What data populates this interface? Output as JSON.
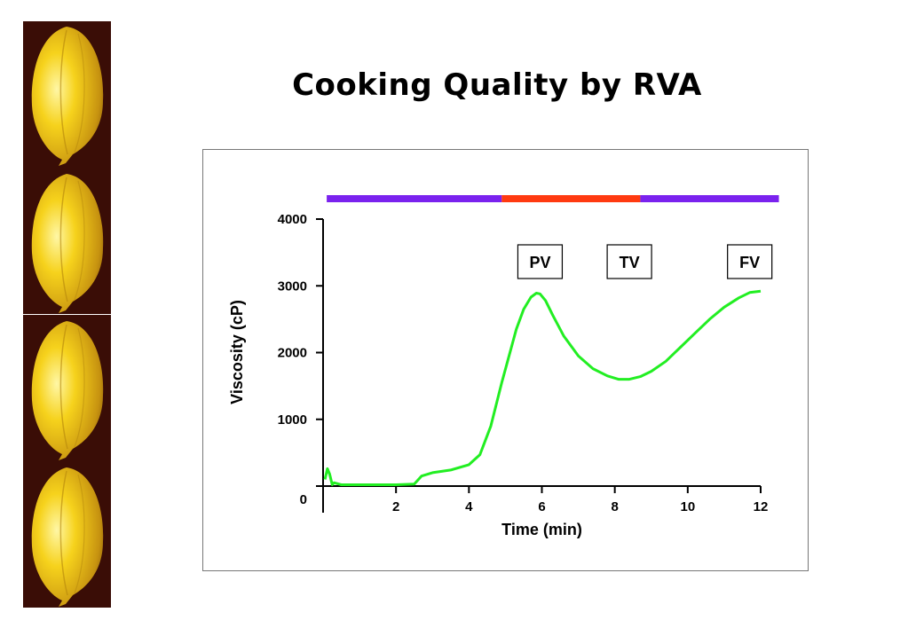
{
  "slide": {
    "title": "Cooking Quality by RVA"
  },
  "colors": {
    "curve": "#22ee22",
    "temp_bar_cool": "#7a22ee",
    "temp_bar_hot": "#ff3a10",
    "grain": "#f2c21a",
    "grain_background": "#3a0d06"
  },
  "decor": {
    "grain_icon": "rice-grain-image",
    "grain_count": 4
  },
  "chart_data": {
    "type": "line",
    "xlabel": "Time (min)",
    "ylabel": "Viscosity (cP)",
    "xlim": [
      0,
      12
    ],
    "ylim": [
      0,
      4000
    ],
    "x_ticks": [
      2,
      4,
      6,
      8,
      10,
      12
    ],
    "y_ticks": [
      0,
      1000,
      2000,
      3000,
      4000
    ],
    "grid": false,
    "series": [
      {
        "x": [
          0.05,
          0.12,
          0.18,
          0.25,
          0.3,
          0.5,
          1,
          1.5,
          2,
          2.5,
          2.7,
          3,
          3.5,
          4,
          4.3,
          4.6,
          4.9,
          5.1,
          5.3,
          5.5,
          5.7,
          5.85,
          5.95,
          6.1,
          6.3,
          6.6,
          7,
          7.4,
          7.8,
          8.1,
          8.4,
          8.7,
          9,
          9.4,
          9.8,
          10.2,
          10.6,
          11,
          11.4,
          11.7,
          12
        ],
        "y": [
          100,
          260,
          180,
          20,
          50,
          20,
          20,
          20,
          20,
          30,
          150,
          200,
          240,
          320,
          470,
          900,
          1550,
          1950,
          2350,
          2650,
          2830,
          2890,
          2880,
          2780,
          2560,
          2250,
          1950,
          1760,
          1650,
          1600,
          1600,
          1640,
          1720,
          1870,
          2080,
          2290,
          2500,
          2680,
          2820,
          2900,
          2920
        ]
      }
    ],
    "markers": [
      {
        "label": "PV",
        "x": 5.95
      },
      {
        "label": "TV",
        "x": 8.4
      },
      {
        "label": "FV",
        "x": 11.7
      }
    ],
    "temperature_bar": [
      {
        "from": 0.1,
        "to": 4.9,
        "color": "#7a22ee"
      },
      {
        "from": 4.9,
        "to": 8.7,
        "color": "#ff3a10"
      },
      {
        "from": 8.7,
        "to": 12.5,
        "color": "#7a22ee"
      }
    ]
  }
}
